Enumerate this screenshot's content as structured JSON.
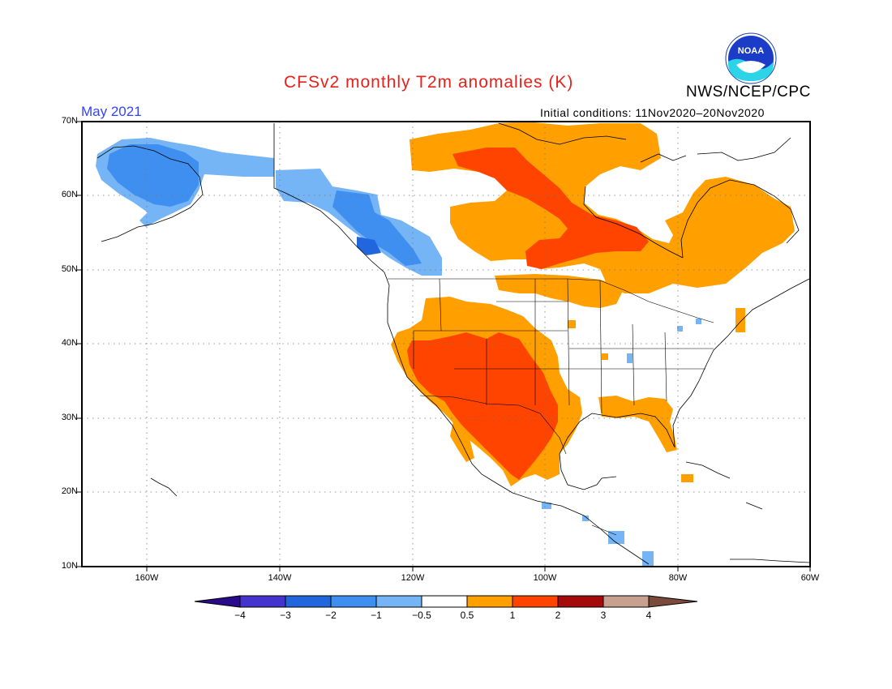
{
  "title": "CFSv2 monthly T2m anomalies (K)",
  "month": "May 2021",
  "initial_conditions": "Initial conditions: 11Nov2020–20Nov2020",
  "agency": "NWS/NCEP/CPC",
  "logo_text": "NOAA",
  "lat_labels": [
    "70N",
    "60N",
    "50N",
    "40N",
    "30N",
    "20N",
    "10N"
  ],
  "lon_labels": [
    "160W",
    "140W",
    "120W",
    "100W",
    "80W",
    "60W"
  ],
  "colorbar": {
    "labels": [
      "−4",
      "−3",
      "−2",
      "−1",
      "−0.5",
      "0.5",
      "1",
      "2",
      "3",
      "4"
    ],
    "colors": [
      "#2a0a8a",
      "#4433cc",
      "#2266dd",
      "#3f8ff0",
      "#75b4f5",
      "#ffffff",
      "#ffa000",
      "#ff4400",
      "#a50a0a",
      "#c8a090",
      "#7a4a3a"
    ]
  },
  "colors": {
    "warm_1": "#ffa000",
    "warm_2": "#ff4400",
    "cool_1": "#75b4f5",
    "cool_2": "#3f8ff0",
    "cool_3": "#2266dd"
  }
}
